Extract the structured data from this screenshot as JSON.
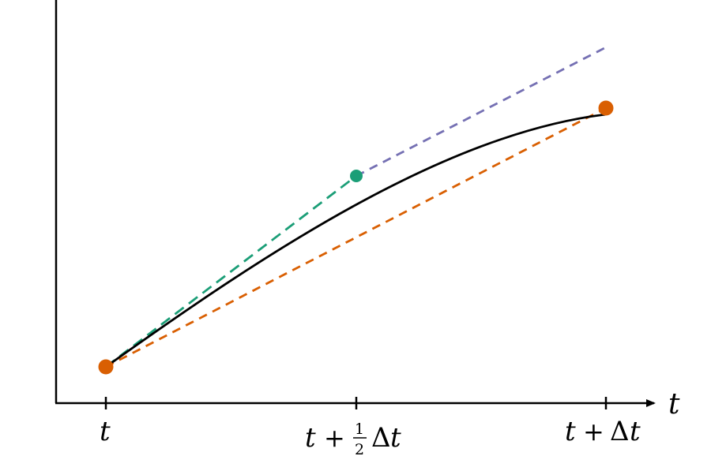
{
  "diagram": {
    "axis": {
      "x_label": "t"
    },
    "ticks": [
      {
        "var": "t",
        "plus": "",
        "frac_num": "",
        "frac_den": "",
        "delta": "",
        "var2": ""
      },
      {
        "var": "t",
        "plus": "+",
        "frac_num": "1",
        "frac_den": "2",
        "delta": "Δ",
        "var2": "t"
      },
      {
        "var": "t",
        "plus": "+",
        "frac_num": "",
        "frac_den": "",
        "delta": "Δ",
        "var2": "t"
      }
    ],
    "colors": {
      "axis": "#000000",
      "curve": "#000000",
      "endpoint_markers": "#d95f02",
      "secant": "#d95f02",
      "initial_slope": "#1b9e77",
      "midpoint_marker": "#1b9e77",
      "midpoint_slope": "#7570b3"
    }
  }
}
